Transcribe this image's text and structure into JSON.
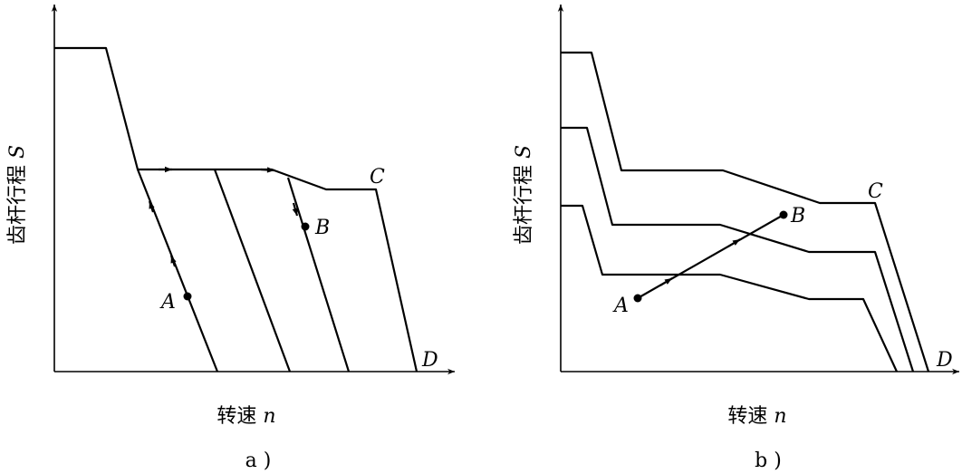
{
  "panels": [
    {
      "y_label": {
        "text": "齿杆行程",
        "symbol": "S"
      },
      "x_label": {
        "text": "转速",
        "symbol": "n"
      },
      "points": [
        "A",
        "B",
        "C",
        "D"
      ],
      "caption": "a )"
    },
    {
      "y_label": {
        "text": "齿杆行程",
        "symbol": "S"
      },
      "x_label": {
        "text": "转速",
        "symbol": "n"
      },
      "points": [
        "A",
        "B",
        "C",
        "D"
      ],
      "caption": "b )"
    }
  ]
}
